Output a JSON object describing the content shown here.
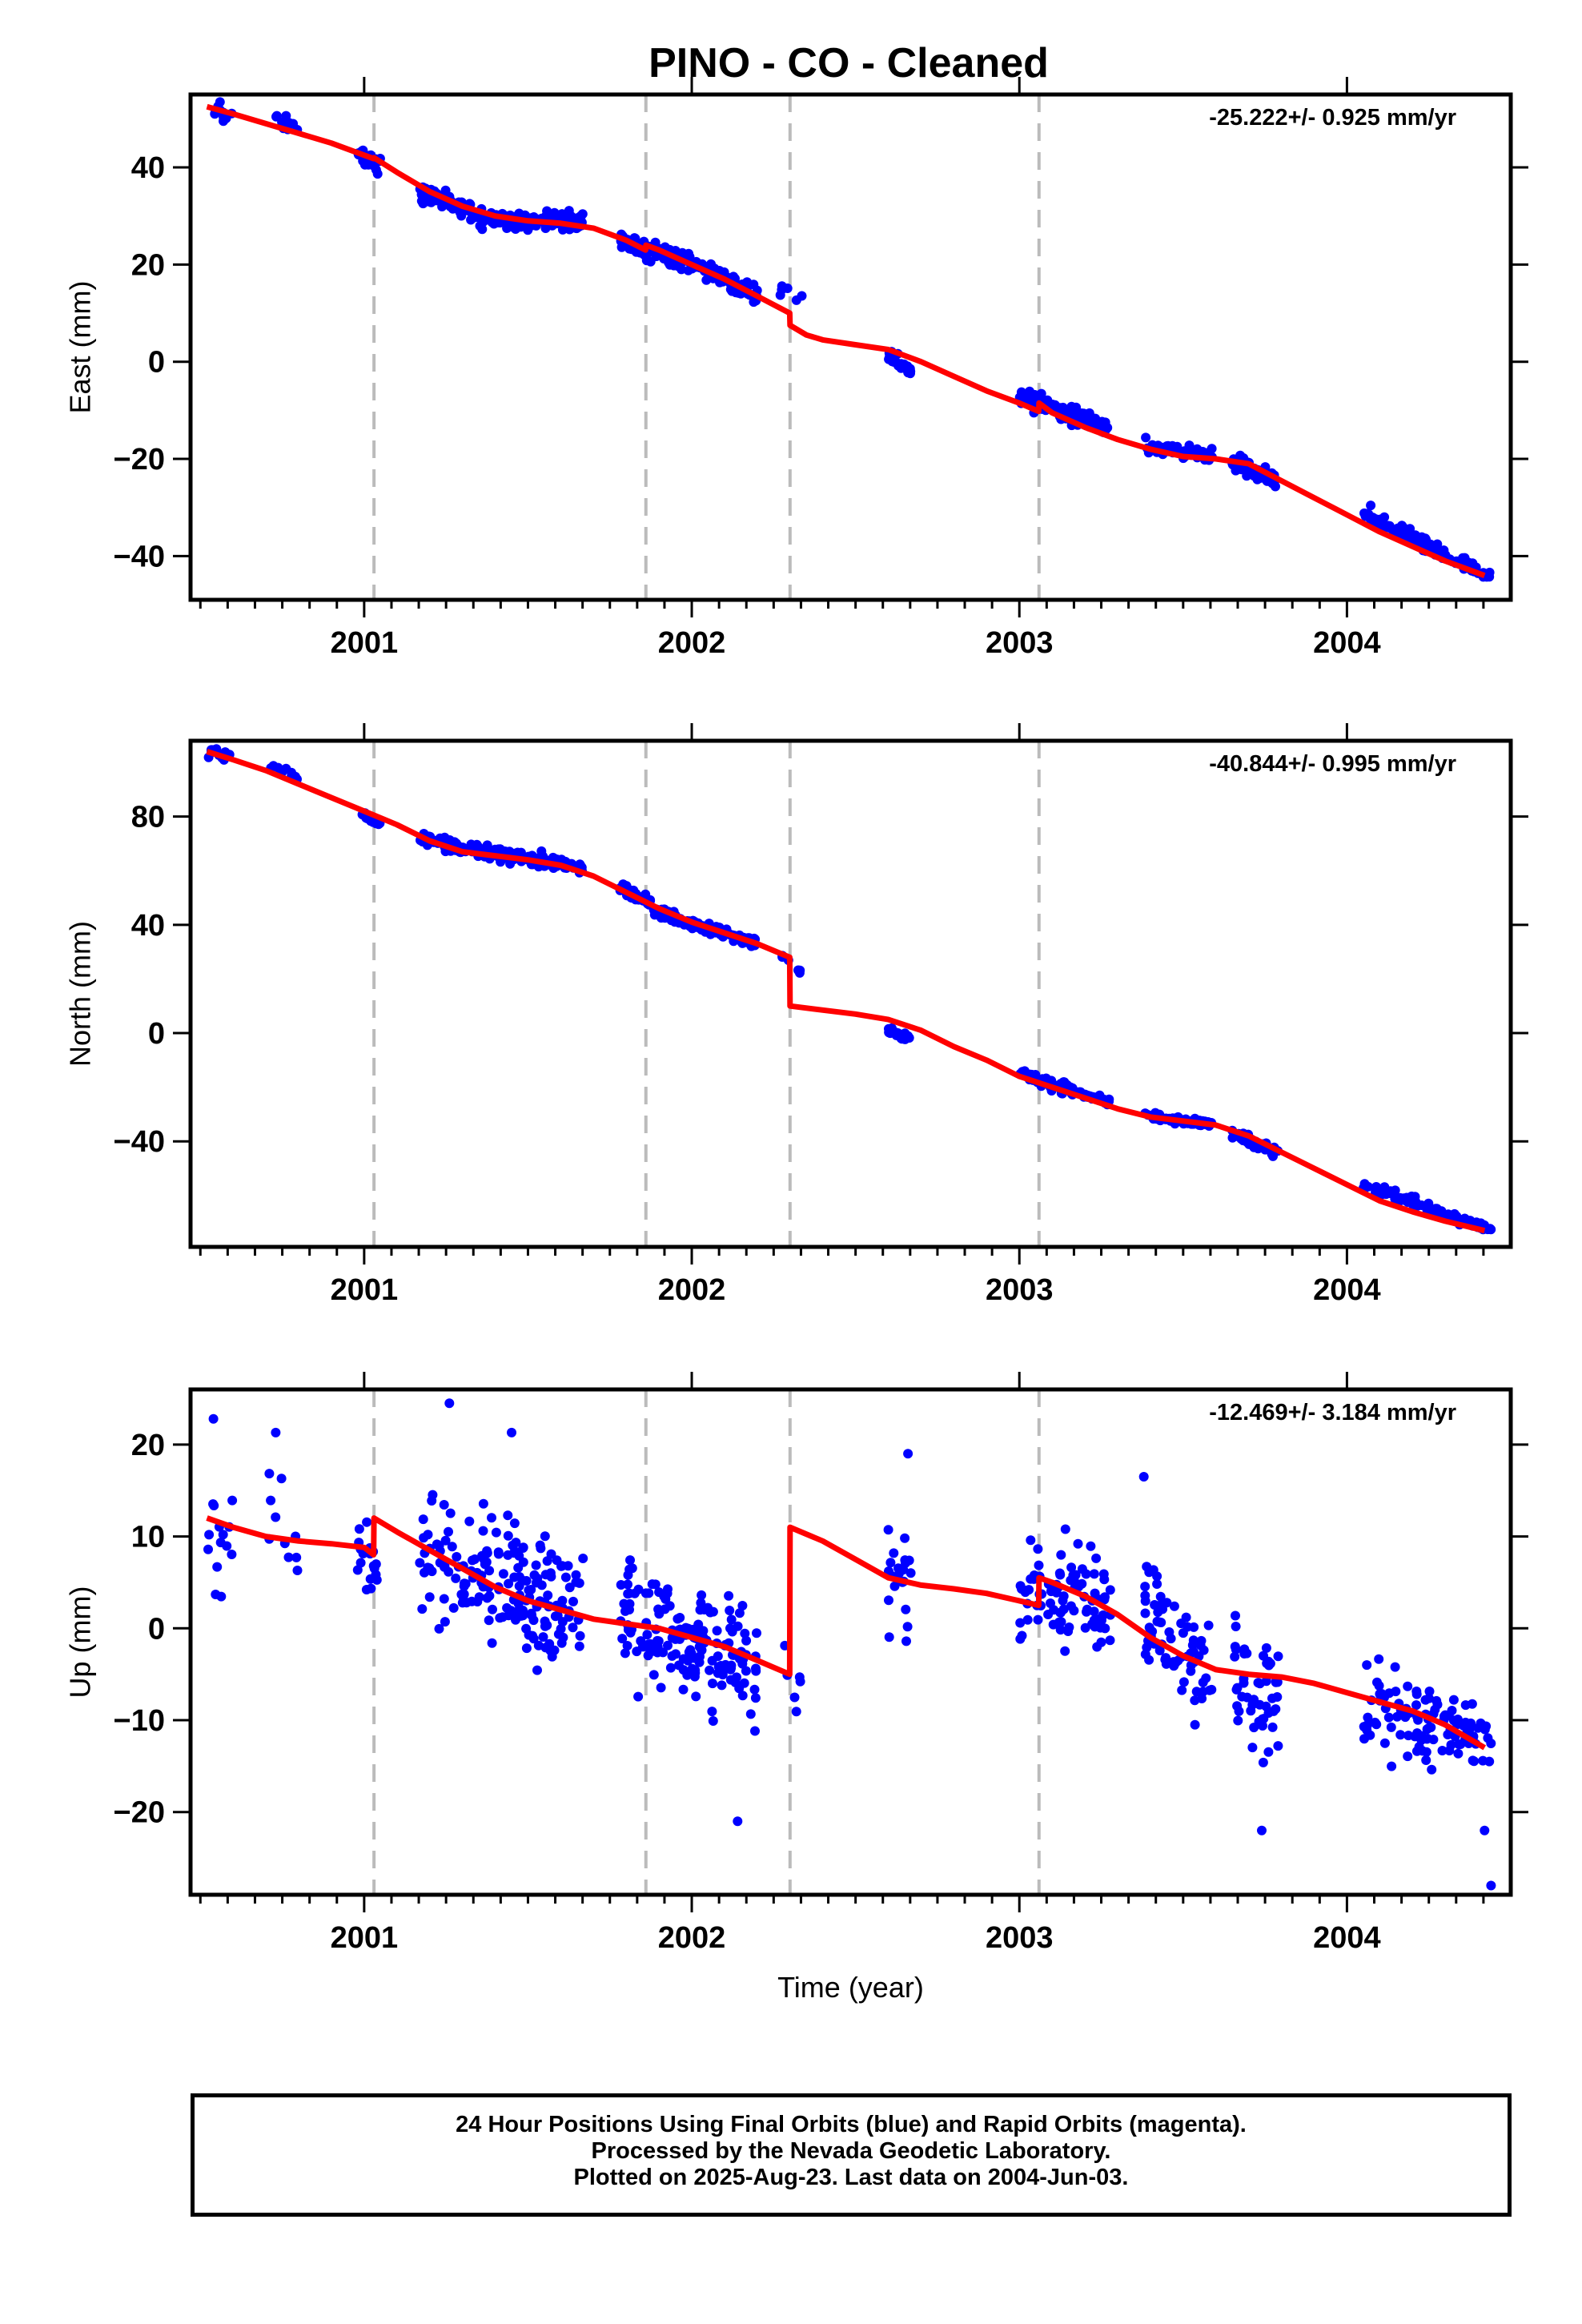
{
  "title": "PINO  - CO - Cleaned",
  "colors": {
    "points": "#0000ff",
    "model": "#ff0000",
    "event_lines": "#bbbbbb",
    "axes": "#000000"
  },
  "footer": {
    "line1": "24 Hour Positions Using Final Orbits (blue) and Rapid Orbits (magenta).",
    "line2": "Processed by the Nevada Geodetic Laboratory.",
    "line3": "Plotted on 2025-Aug-23. Last data on 2004-Jun-03."
  },
  "chart_data": [
    {
      "type": "scatter",
      "ylabel": "East (mm)",
      "xlabel": "",
      "rate_label": "-25.222+/- 0.925 mm/yr",
      "xlim": [
        2000.47,
        2004.5
      ],
      "ylim": [
        -49,
        55
      ],
      "xticks": [
        2001,
        2002,
        2003,
        2004
      ],
      "yticks": [
        -40,
        -20,
        0,
        20,
        40
      ],
      "event_lines": [
        2001.03,
        2001.86,
        2002.3,
        2003.06
      ],
      "grid": false,
      "series": [
        {
          "style": "points",
          "color": "#0000ff",
          "clusters": [
            {
              "x": [
                2000.52,
                2000.6
              ],
              "trend": [
                51.5,
                51.0
              ],
              "spread": 1.5,
              "count": 12
            },
            {
              "x": [
                2000.71,
                2000.8
              ],
              "trend": [
                50.0,
                48.0
              ],
              "spread": 1.5,
              "count": 10
            },
            {
              "x": [
                2000.98,
                2001.05
              ],
              "trend": [
                43.0,
                40.0
              ],
              "spread": 2.0,
              "count": 20
            },
            {
              "x": [
                2001.17,
                2001.35
              ],
              "trend": [
                35.0,
                30.5
              ],
              "spread": 1.8,
              "count": 70
            },
            {
              "x": [
                2001.35,
                2001.67
              ],
              "trend": [
                29.5,
                28.5
              ],
              "spread": 1.8,
              "count": 110
            },
            {
              "x": [
                2001.78,
                2001.88
              ],
              "trend": [
                25.0,
                22.5
              ],
              "spread": 1.6,
              "count": 40
            },
            {
              "x": [
                2001.88,
                2002.2
              ],
              "trend": [
                23.5,
                14.0
              ],
              "spread": 2.0,
              "count": 120
            },
            {
              "x": [
                2002.27,
                2002.34
              ],
              "trend": [
                15.0,
                12.0
              ],
              "spread": 1.5,
              "count": 6
            },
            {
              "x": [
                2002.6,
                2002.67
              ],
              "trend": [
                1.5,
                -1.5
              ],
              "spread": 1.2,
              "count": 25
            },
            {
              "x": [
                2003.0,
                2003.28
              ],
              "trend": [
                -7.0,
                -14.0
              ],
              "spread": 1.6,
              "count": 90
            },
            {
              "x": [
                2003.38,
                2003.59
              ],
              "trend": [
                -17.0,
                -19.5
              ],
              "spread": 1.3,
              "count": 70
            },
            {
              "x": [
                2003.65,
                2003.79
              ],
              "trend": [
                -20.0,
                -25.0
              ],
              "spread": 1.6,
              "count": 50
            },
            {
              "x": [
                2004.05,
                2004.44
              ],
              "trend": [
                -31.0,
                -44.5
              ],
              "spread": 1.4,
              "count": 110
            }
          ]
        },
        {
          "style": "line",
          "color": "#ff0000",
          "x": [
            2000.52,
            2000.6,
            2000.7,
            2000.8,
            2000.9,
            2001.0,
            2001.029,
            2001.03,
            2001.1,
            2001.2,
            2001.3,
            2001.4,
            2001.5,
            2001.6,
            2001.7,
            2001.8,
            2001.859,
            2001.86,
            2001.9,
            2002.0,
            2002.1,
            2002.2,
            2002.299,
            2002.3,
            2002.35,
            2002.4,
            2002.5,
            2002.6,
            2002.7,
            2002.8,
            2002.9,
            2003.0,
            2003.059,
            2003.06,
            2003.1,
            2003.2,
            2003.3,
            2003.4,
            2003.5,
            2003.6,
            2003.7,
            2003.8,
            2003.9,
            2004.0,
            2004.1,
            2004.2,
            2004.3,
            2004.42
          ],
          "y": [
            52.5,
            51.0,
            49.0,
            47.0,
            45.0,
            42.5,
            41.8,
            42.0,
            39.0,
            35.0,
            32.0,
            30.0,
            29.0,
            28.5,
            27.5,
            25.0,
            23.0,
            24.0,
            23.0,
            20.0,
            17.0,
            13.5,
            10.0,
            7.5,
            5.5,
            4.5,
            3.5,
            2.5,
            0.0,
            -3.0,
            -6.0,
            -8.5,
            -10.2,
            -8.5,
            -10.5,
            -13.5,
            -16.0,
            -18.0,
            -19.5,
            -20.0,
            -21.0,
            -24.5,
            -28.0,
            -31.5,
            -35.0,
            -38.0,
            -41.0,
            -44.0
          ]
        }
      ]
    },
    {
      "type": "scatter",
      "ylabel": "North (mm)",
      "xlabel": "",
      "rate_label": "-40.844+/- 0.995 mm/yr",
      "xlim": [
        2000.47,
        2004.5
      ],
      "ylim": [
        -79,
        108
      ],
      "xticks": [
        2001,
        2002,
        2003,
        2004
      ],
      "yticks": [
        -40,
        0,
        40,
        80
      ],
      "event_lines": [
        2001.03,
        2001.86,
        2002.3,
        2003.06
      ],
      "grid": false,
      "series": [
        {
          "style": "points",
          "color": "#0000ff",
          "clusters": [
            {
              "x": [
                2000.52,
                2000.6
              ],
              "trend": [
                104.0,
                102.0
              ],
              "spread": 1.5,
              "count": 12
            },
            {
              "x": [
                2000.71,
                2000.8
              ],
              "trend": [
                99.0,
                94.0
              ],
              "spread": 1.8,
              "count": 10
            },
            {
              "x": [
                2000.98,
                2001.05
              ],
              "trend": [
                82.0,
                77.0
              ],
              "spread": 1.5,
              "count": 20
            },
            {
              "x": [
                2001.17,
                2001.67
              ],
              "trend": [
                71.0,
                61.0
              ],
              "spread": 2.2,
              "count": 180
            },
            {
              "x": [
                2001.78,
                2001.88
              ],
              "trend": [
                54.0,
                48.0
              ],
              "spread": 1.8,
              "count": 40
            },
            {
              "x": [
                2001.88,
                2002.2
              ],
              "trend": [
                45.0,
                33.0
              ],
              "spread": 2.0,
              "count": 120
            },
            {
              "x": [
                2002.27,
                2002.34
              ],
              "trend": [
                30.0,
                22.0
              ],
              "spread": 1.5,
              "count": 6
            },
            {
              "x": [
                2002.6,
                2002.67
              ],
              "trend": [
                1.0,
                -2.0
              ],
              "spread": 1.2,
              "count": 25
            },
            {
              "x": [
                2003.0,
                2003.28
              ],
              "trend": [
                -15.0,
                -26.0
              ],
              "spread": 1.8,
              "count": 90
            },
            {
              "x": [
                2003.38,
                2003.59
              ],
              "trend": [
                -30.0,
                -34.0
              ],
              "spread": 1.4,
              "count": 70
            },
            {
              "x": [
                2003.65,
                2003.79
              ],
              "trend": [
                -37.0,
                -44.0
              ],
              "spread": 1.8,
              "count": 50
            },
            {
              "x": [
                2004.05,
                2004.44
              ],
              "trend": [
                -56.0,
                -73.0
              ],
              "spread": 1.6,
              "count": 110
            }
          ]
        },
        {
          "style": "line",
          "color": "#ff0000",
          "x": [
            2000.52,
            2000.6,
            2000.7,
            2000.8,
            2000.9,
            2001.0,
            2001.1,
            2001.2,
            2001.3,
            2001.4,
            2001.5,
            2001.6,
            2001.7,
            2001.8,
            2001.9,
            2002.0,
            2002.1,
            2002.2,
            2002.299,
            2002.3,
            2002.4,
            2002.5,
            2002.6,
            2002.7,
            2002.8,
            2002.9,
            2003.0,
            2003.1,
            2003.2,
            2003.3,
            2003.4,
            2003.5,
            2003.6,
            2003.7,
            2003.8,
            2003.9,
            2004.0,
            2004.1,
            2004.2,
            2004.3,
            2004.42
          ],
          "y": [
            104.0,
            101.0,
            97.0,
            92.0,
            87.0,
            82.0,
            77.0,
            71.0,
            67.0,
            65.5,
            64.0,
            62.0,
            58.0,
            52.0,
            46.0,
            41.0,
            37.0,
            33.0,
            28.0,
            10.0,
            8.5,
            7.0,
            5.0,
            1.0,
            -5.0,
            -10.0,
            -16.0,
            -20.0,
            -24.0,
            -28.0,
            -31.0,
            -32.5,
            -34.0,
            -38.0,
            -44.0,
            -50.0,
            -56.0,
            -62.0,
            -66.0,
            -69.5,
            -73.0
          ]
        }
      ]
    },
    {
      "type": "scatter",
      "ylabel": "Up (mm)",
      "xlabel": "Time (year)",
      "rate_label": "-12.469+/- 3.184 mm/yr",
      "xlim": [
        2000.47,
        2004.5
      ],
      "ylim": [
        -29,
        26
      ],
      "xticks": [
        2001,
        2002,
        2003,
        2004
      ],
      "yticks": [
        -20,
        -10,
        0,
        10,
        20
      ],
      "event_lines": [
        2001.03,
        2001.86,
        2002.3,
        2003.06
      ],
      "grid": false,
      "series": [
        {
          "style": "points",
          "color": "#0000ff",
          "clusters": [
            {
              "x": [
                2000.52,
                2000.6
              ],
              "trend": [
                10.0,
                9.0
              ],
              "spread": 6.0,
              "count": 14
            },
            {
              "x": [
                2000.71,
                2000.8
              ],
              "trend": [
                12.0,
                8.0
              ],
              "spread": 6.0,
              "count": 10
            },
            {
              "x": [
                2000.98,
                2001.05
              ],
              "trend": [
                8.0,
                6.0
              ],
              "spread": 4.0,
              "count": 18
            },
            {
              "x": [
                2001.17,
                2001.67
              ],
              "trend": [
                9.0,
                2.0
              ],
              "spread": 6.5,
              "count": 180
            },
            {
              "x": [
                2001.78,
                2002.2
              ],
              "trend": [
                2.0,
                -5.0
              ],
              "spread": 6.0,
              "count": 170
            },
            {
              "x": [
                2002.27,
                2002.34
              ],
              "trend": [
                -6.0,
                -4.0
              ],
              "spread": 4.0,
              "count": 6
            },
            {
              "x": [
                2002.6,
                2002.67
              ],
              "trend": [
                5.0,
                5.0
              ],
              "spread": 6.0,
              "count": 22
            },
            {
              "x": [
                2003.0,
                2003.28
              ],
              "trend": [
                5.0,
                2.0
              ],
              "spread": 5.0,
              "count": 90
            },
            {
              "x": [
                2003.38,
                2003.59
              ],
              "trend": [
                2.0,
                -6.0
              ],
              "spread": 5.5,
              "count": 70
            },
            {
              "x": [
                2003.65,
                2003.79
              ],
              "trend": [
                -3.0,
                -10.0
              ],
              "spread": 6.0,
              "count": 50
            },
            {
              "x": [
                2004.05,
                2004.44
              ],
              "trend": [
                -8.0,
                -12.0
              ],
              "spread": 4.5,
              "count": 110
            }
          ],
          "extra_points": [
            [
              2001.26,
              24.5
            ],
            [
              2000.54,
              22.8
            ],
            [
              2000.73,
              21.3
            ],
            [
              2001.45,
              21.3
            ],
            [
              2002.66,
              19.0
            ],
            [
              2003.38,
              16.5
            ],
            [
              2004.44,
              -28.0
            ],
            [
              2003.74,
              -22.0
            ],
            [
              2002.14,
              -21.0
            ],
            [
              2004.42,
              -22.0
            ]
          ]
        },
        {
          "style": "line",
          "color": "#ff0000",
          "x": [
            2000.52,
            2000.6,
            2000.7,
            2000.8,
            2000.9,
            2001.0,
            2001.029,
            2001.03,
            2001.1,
            2001.2,
            2001.3,
            2001.4,
            2001.5,
            2001.6,
            2001.7,
            2001.8,
            2001.9,
            2002.0,
            2002.1,
            2002.2,
            2002.299,
            2002.3,
            2002.4,
            2002.5,
            2002.6,
            2002.7,
            2002.8,
            2002.9,
            2003.0,
            2003.059,
            2003.06,
            2003.1,
            2003.2,
            2003.3,
            2003.4,
            2003.5,
            2003.6,
            2003.7,
            2003.8,
            2003.9,
            2004.0,
            2004.1,
            2004.2,
            2004.3,
            2004.42
          ],
          "y": [
            12.0,
            11.0,
            10.0,
            9.5,
            9.2,
            8.8,
            8.0,
            12.0,
            10.5,
            8.5,
            6.5,
            4.5,
            3.0,
            2.0,
            1.0,
            0.5,
            0.0,
            -1.0,
            -2.0,
            -3.5,
            -5.0,
            11.0,
            9.5,
            7.5,
            5.5,
            4.7,
            4.3,
            3.8,
            3.0,
            2.5,
            5.5,
            5.0,
            3.5,
            1.5,
            -1.0,
            -3.0,
            -4.5,
            -5.0,
            -5.3,
            -6.0,
            -7.0,
            -8.0,
            -9.0,
            -10.5,
            -13.0
          ]
        }
      ]
    }
  ]
}
